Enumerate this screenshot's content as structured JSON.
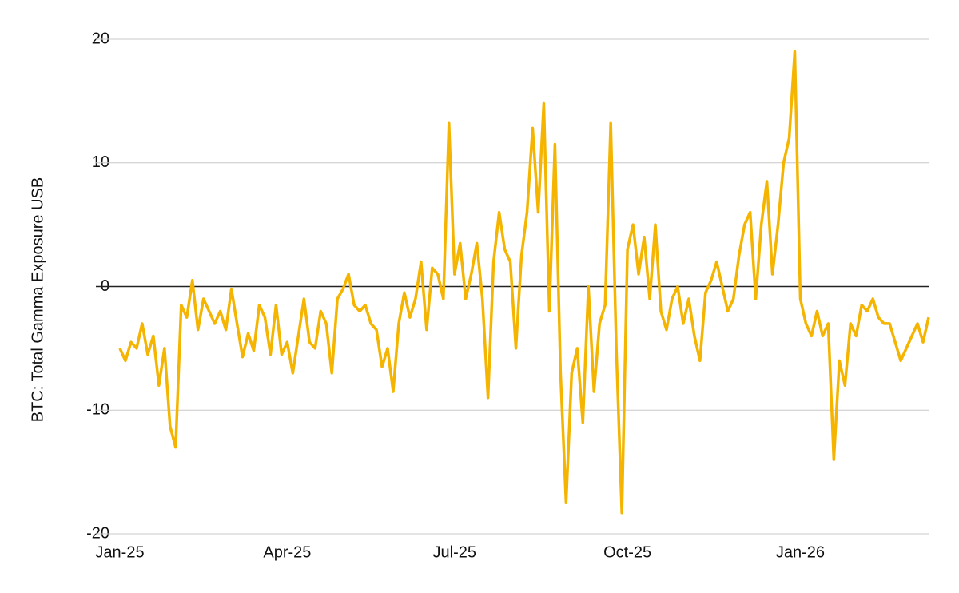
{
  "chart_data": {
    "type": "line",
    "y_label": "BTC: Total Gamma Exposure USB",
    "categories": [
      "Jan-25",
      null,
      null,
      null,
      null,
      null,
      null,
      null,
      null,
      null,
      null,
      null,
      null,
      null,
      null,
      null,
      null,
      null,
      null,
      null,
      null,
      null,
      null,
      null,
      null,
      null,
      null,
      null,
      null,
      null,
      "Apr-25",
      null,
      null,
      null,
      null,
      null,
      null,
      null,
      null,
      null,
      null,
      null,
      null,
      null,
      null,
      null,
      null,
      null,
      null,
      null,
      null,
      null,
      null,
      null,
      null,
      null,
      null,
      null,
      null,
      null,
      "Jul-25",
      null,
      null,
      null,
      null,
      null,
      null,
      null,
      null,
      null,
      null,
      null,
      null,
      null,
      null,
      null,
      null,
      null,
      null,
      null,
      null,
      null,
      null,
      null,
      null,
      null,
      null,
      null,
      null,
      null,
      null,
      "Oct-25",
      null,
      null,
      null,
      null,
      null,
      null,
      null,
      null,
      null,
      null,
      null,
      null,
      null,
      null,
      null,
      null,
      null,
      null,
      null,
      null,
      null,
      null,
      null,
      null,
      null,
      null,
      null,
      null,
      null,
      null,
      "Jan-26",
      null,
      null,
      null,
      null,
      null,
      null,
      null,
      null,
      null,
      null,
      null,
      null,
      null,
      null,
      null,
      null,
      null,
      null,
      null,
      null,
      null,
      null,
      null
    ],
    "series": [
      {
        "name": "BTC: Total Gamma Exposure USB",
        "color": "#f4b400",
        "values": [
          -5,
          -6,
          -4.5,
          -5,
          -3,
          -5.5,
          -4,
          -8,
          -5,
          -11.3,
          -13,
          -1.5,
          -2.5,
          0.5,
          -3.5,
          -1,
          -2,
          -3,
          -2,
          -3.5,
          -0.2,
          -3,
          -5.7,
          -3.8,
          -5.2,
          -1.5,
          -2.5,
          -5.5,
          -1.5,
          -5.5,
          -4.5,
          -7,
          -4,
          -1,
          -4.5,
          -5,
          -2,
          -3,
          -7,
          -1,
          -0.2,
          1,
          -1.5,
          -2,
          -1.5,
          -3,
          -3.5,
          -6.5,
          -5,
          -8.5,
          -3,
          -0.5,
          -2.5,
          -1,
          2,
          -3.5,
          1.5,
          1,
          -1,
          13.2,
          1,
          3.5,
          -1,
          1,
          3.5,
          -1,
          -9,
          2,
          6,
          3,
          2,
          -5,
          2.5,
          6,
          12.8,
          6,
          14.8,
          -2,
          11.5,
          -7,
          -17.5,
          -7,
          -5,
          -11,
          0,
          -8.5,
          -3,
          -1.5,
          13.2,
          -5,
          -18.3,
          3,
          5,
          1,
          4,
          -1,
          5,
          -2,
          -3.5,
          -1,
          0,
          -3,
          -1,
          -4,
          -6,
          -0.5,
          0.5,
          2,
          0,
          -2,
          -1,
          2.5,
          5,
          6,
          -1,
          5,
          8.5,
          1,
          5,
          10,
          12,
          19,
          -1,
          -3,
          -4,
          -2,
          -4,
          -3,
          -14,
          -6,
          -8,
          -3,
          -4,
          -1.5,
          -2,
          -1,
          -2.5,
          -3,
          -3,
          -4.5,
          -6,
          -5,
          -4,
          -3,
          -4.5,
          -2.5
        ]
      }
    ],
    "ylim": [
      -20,
      20
    ],
    "yticks": [
      -20,
      -10,
      0,
      10,
      20
    ],
    "grid": true
  }
}
